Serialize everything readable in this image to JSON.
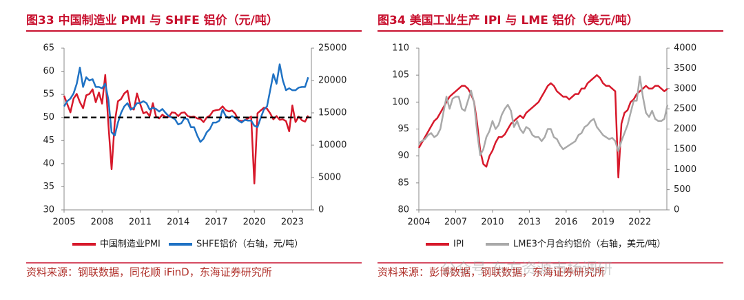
{
  "chart_data": [
    {
      "type": "line",
      "title": "图33  中国制造业 PMI 与 SHFE 铝价（元/吨）",
      "source": "资料来源：钢联数据，同花顺 iFinD，东海证券研究所",
      "x": [
        2005,
        2005.25,
        2005.5,
        2005.75,
        2006,
        2006.25,
        2006.5,
        2006.75,
        2007,
        2007.25,
        2007.5,
        2007.75,
        2008,
        2008.25,
        2008.5,
        2008.75,
        2009,
        2009.25,
        2009.5,
        2009.75,
        2010,
        2010.25,
        2010.5,
        2010.75,
        2011,
        2011.25,
        2011.5,
        2011.75,
        2012,
        2012.25,
        2012.5,
        2012.75,
        2013,
        2013.25,
        2013.5,
        2013.75,
        2014,
        2014.25,
        2014.5,
        2014.75,
        2015,
        2015.25,
        2015.5,
        2015.75,
        2016,
        2016.25,
        2016.5,
        2016.75,
        2017,
        2017.25,
        2017.5,
        2017.75,
        2018,
        2018.25,
        2018.5,
        2018.75,
        2019,
        2019.25,
        2019.5,
        2019.75,
        2020,
        2020.25,
        2020.5,
        2020.75,
        2021,
        2021.25,
        2021.5,
        2021.75,
        2022,
        2022.25,
        2022.5,
        2022.75,
        2023,
        2023.25,
        2023.5,
        2023.75,
        2024,
        2024.25
      ],
      "xlim": [
        2005,
        2024.5
      ],
      "xticks": [
        2005,
        2008,
        2011,
        2014,
        2017,
        2020,
        2023
      ],
      "ylim": [
        30,
        65
      ],
      "yticks": [
        30,
        35,
        40,
        45,
        50,
        55,
        60,
        65
      ],
      "y2lim": [
        0,
        25000
      ],
      "y2ticks": [
        0,
        5000,
        10000,
        15000,
        20000,
        25000
      ],
      "hline": 50,
      "series": [
        {
          "name": "中国制造业PMI",
          "color": "#d7192b",
          "values": [
            54.7,
            52.9,
            51.1,
            54.1,
            55.1,
            53.3,
            52.0,
            54.8,
            55.1,
            56.1,
            53.3,
            55.4,
            53.0,
            59.2,
            48.4,
            38.8,
            49.0,
            53.5,
            54.0,
            55.2,
            55.8,
            52.1,
            51.7,
            55.2,
            52.9,
            50.9,
            51.2,
            50.3,
            53.1,
            50.2,
            49.8,
            50.6,
            50.1,
            50.1,
            51.1,
            51.0,
            50.3,
            51.0,
            51.1,
            50.3,
            50.1,
            50.2,
            49.8,
            49.7,
            49.0,
            50.0,
            50.4,
            51.4,
            51.6,
            51.7,
            52.4,
            51.6,
            51.3,
            51.5,
            50.8,
            49.4,
            49.2,
            49.4,
            49.8,
            50.2,
            35.7,
            50.9,
            51.5,
            52.1,
            51.9,
            50.9,
            49.6,
            50.3,
            49.5,
            49.6,
            49.2,
            47.0,
            52.6,
            49.0,
            50.2,
            49.4,
            49.1,
            50.4
          ]
        },
        {
          "name": "SHFE铝价（右轴，元/吨）",
          "color": "#1f72c4",
          "axis": "y2",
          "values": [
            16000,
            16800,
            17200,
            18000,
            19500,
            22000,
            19000,
            20500,
            20000,
            20200,
            19000,
            19000,
            18800,
            19500,
            17000,
            12000,
            11500,
            13500,
            15000,
            16000,
            16500,
            15500,
            15800,
            16500,
            16500,
            16800,
            16500,
            15500,
            15800,
            15600,
            15200,
            15600,
            15000,
            14500,
            14300,
            14000,
            13200,
            13400,
            14200,
            14000,
            12800,
            12800,
            11500,
            10500,
            11000,
            12000,
            12500,
            13500,
            13500,
            13800,
            15500,
            14500,
            14200,
            14500,
            14200,
            13800,
            13500,
            13900,
            13800,
            13800,
            13000,
            12800,
            14200,
            15500,
            16000,
            18500,
            21000,
            19500,
            22500,
            20000,
            18500,
            18800,
            18500,
            18500,
            18900,
            19000,
            19000,
            20500
          ]
        }
      ]
    },
    {
      "type": "line",
      "title": "图34  美国工业生产 IPI 与 LME 铝价（美元/吨）",
      "source": "资料来源：彭博数据，钢联数据，东海证券研究所",
      "x": [
        2004,
        2004.25,
        2004.5,
        2004.75,
        2005,
        2005.25,
        2005.5,
        2005.75,
        2006,
        2006.25,
        2006.5,
        2006.75,
        2007,
        2007.25,
        2007.5,
        2007.75,
        2008,
        2008.25,
        2008.5,
        2008.75,
        2009,
        2009.25,
        2009.5,
        2009.75,
        2010,
        2010.25,
        2010.5,
        2010.75,
        2011,
        2011.25,
        2011.5,
        2011.75,
        2012,
        2012.25,
        2012.5,
        2012.75,
        2013,
        2013.25,
        2013.5,
        2013.75,
        2014,
        2014.25,
        2014.5,
        2014.75,
        2015,
        2015.25,
        2015.5,
        2015.75,
        2016,
        2016.25,
        2016.5,
        2016.75,
        2017,
        2017.25,
        2017.5,
        2017.75,
        2018,
        2018.25,
        2018.5,
        2018.75,
        2019,
        2019.25,
        2019.5,
        2019.75,
        2020,
        2020.25,
        2020.5,
        2020.75,
        2021,
        2021.25,
        2021.5,
        2021.75,
        2022,
        2022.25,
        2022.5,
        2022.75,
        2023,
        2023.25,
        2023.5,
        2023.75,
        2024,
        2024.25
      ],
      "xlim": [
        2004,
        2024.2
      ],
      "xticks": [
        2004,
        2007,
        2010,
        2013,
        2016,
        2019,
        2022
      ],
      "ylim": [
        80,
        110
      ],
      "yticks": [
        80,
        85,
        90,
        95,
        100,
        105,
        110
      ],
      "y2lim": [
        0,
        4000
      ],
      "y2ticks": [
        0,
        500,
        1000,
        1500,
        2000,
        2500,
        3000,
        3500,
        4000
      ],
      "series": [
        {
          "name": "IPI",
          "color": "#d7192b",
          "values": [
            91.5,
            92.5,
            93.5,
            94.5,
            95.5,
            96.5,
            97,
            98,
            99,
            100,
            101,
            101.5,
            102,
            102.5,
            103,
            103,
            102.5,
            101.5,
            100,
            96,
            91,
            88.5,
            88,
            90,
            91,
            92.5,
            93.5,
            93.5,
            94,
            95,
            96,
            96.5,
            97,
            97.5,
            97,
            98,
            98.5,
            99,
            99.5,
            100,
            101,
            102,
            103,
            103.5,
            103,
            102,
            101.5,
            101,
            101,
            100.5,
            101,
            101.5,
            101.5,
            102.5,
            102.5,
            103.5,
            104,
            104.5,
            105,
            104.5,
            103.5,
            103,
            103,
            102.5,
            102,
            86,
            96,
            98,
            98.5,
            100,
            100.5,
            101.5,
            102,
            102.5,
            103,
            102.5,
            102.5,
            103,
            103,
            102.5,
            102,
            102.5
          ]
        },
        {
          "name": "LME3个月合约铝价（右轴，美元/吨）",
          "color": "#a9a9a9",
          "axis": "y2",
          "values": [
            1650,
            1700,
            1750,
            1850,
            1900,
            1800,
            1850,
            2000,
            2400,
            2800,
            2500,
            2750,
            2800,
            2800,
            2500,
            2450,
            2700,
            2950,
            2650,
            1900,
            1350,
            1500,
            1800,
            1950,
            2200,
            2000,
            2100,
            2350,
            2500,
            2600,
            2450,
            2050,
            2200,
            2000,
            1900,
            2050,
            2000,
            1850,
            1800,
            1800,
            1700,
            1800,
            2000,
            2000,
            1800,
            1750,
            1600,
            1500,
            1550,
            1600,
            1650,
            1700,
            1850,
            1900,
            2050,
            2100,
            2200,
            2250,
            2050,
            1950,
            1850,
            1800,
            1750,
            1780,
            1700,
            1450,
            1700,
            1900,
            2100,
            2400,
            2700,
            2700,
            3300,
            2800,
            2400,
            2300,
            2450,
            2250,
            2200,
            2200,
            2250,
            2600
          ]
        }
      ]
    }
  ],
  "watermark": "公众号·东方资源市场调研"
}
